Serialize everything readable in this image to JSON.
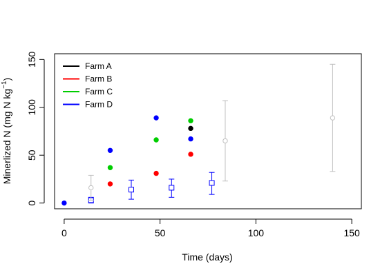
{
  "chart_data": {
    "type": "scatter",
    "title": "",
    "xlabel": "Time (days)",
    "ylabel_main": "Minerlized N (mg N kg",
    "ylabel_sup": "−1",
    "ylabel_close": ")",
    "xlim": [
      -5,
      155
    ],
    "ylim": [
      -6,
      156
    ],
    "xticks": [
      0,
      50,
      100,
      150
    ],
    "yticks": [
      0,
      50,
      100,
      150
    ],
    "grid": false,
    "legend_position": "top-left",
    "series": [
      {
        "name": "Farm A",
        "color": "#000000",
        "marker": "filled-circle",
        "points": [
          {
            "x": 66,
            "y": 78
          }
        ]
      },
      {
        "name": "Farm B",
        "color": "#ff0000",
        "marker": "filled-circle",
        "points": [
          {
            "x": 24,
            "y": 20
          },
          {
            "x": 48,
            "y": 31
          },
          {
            "x": 66,
            "y": 51
          }
        ]
      },
      {
        "name": "Farm C",
        "color": "#00cd00",
        "marker": "filled-circle",
        "points": [
          {
            "x": 24,
            "y": 37
          },
          {
            "x": 48,
            "y": 66
          },
          {
            "x": 66,
            "y": 86
          }
        ]
      },
      {
        "name": "Farm D",
        "color": "#0000ff",
        "marker": "filled-circle",
        "points": [
          {
            "x": 0,
            "y": 0
          },
          {
            "x": 24,
            "y": 55
          },
          {
            "x": 48,
            "y": 89
          },
          {
            "x": 66,
            "y": 67
          }
        ]
      }
    ],
    "errorbar_series": [
      {
        "color": "#0000ff",
        "marker": "open-square",
        "points": [
          {
            "x": 14,
            "y": 3,
            "low": 0,
            "high": 6
          },
          {
            "x": 35,
            "y": 14,
            "low": 4,
            "high": 24
          },
          {
            "x": 56,
            "y": 16,
            "low": 6,
            "high": 25
          },
          {
            "x": 77,
            "y": 21,
            "low": 9,
            "high": 32
          }
        ]
      },
      {
        "color": "#bebebe",
        "marker": "open-circle",
        "points": [
          {
            "x": 14,
            "y": 16,
            "low": 3,
            "high": 29
          },
          {
            "x": 84,
            "y": 65,
            "low": 23,
            "high": 107
          },
          {
            "x": 140,
            "y": 89,
            "low": 33,
            "high": 145
          }
        ]
      }
    ]
  }
}
